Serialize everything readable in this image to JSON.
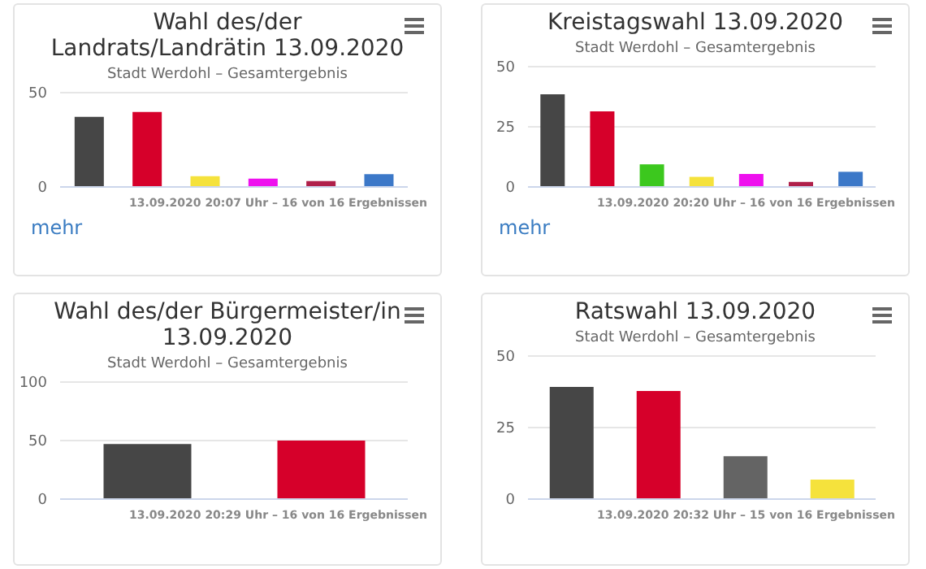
{
  "chart_data": [
    {
      "type": "bar",
      "title": "Wahl des/der Landrats/Landrätin 13.09.2020",
      "subtitle": "Stadt Werdohl – Gesamtergebnis",
      "categories": [
        null,
        null,
        null,
        null,
        null,
        null
      ],
      "values": [
        37.2,
        39.8,
        5.7,
        4.4,
        3.1,
        6.8
      ],
      "colors": [
        "#464646",
        "#d6002a",
        "#f5e23c",
        "#ee10ee",
        "#b0204a",
        "#3c78c8"
      ],
      "ylim": [
        0,
        50
      ],
      "yticks": [
        0,
        50
      ],
      "grid": "y",
      "tick_labels": "y",
      "annotations": [
        "13.09.2020 20:07 Uhr – 16 von 16 Ergebnissen",
        "mehr"
      ]
    },
    {
      "type": "bar",
      "title": "Kreistagswahl 13.09.2020",
      "subtitle": "Stadt Werdohl – Gesamtergebnis",
      "categories": [
        null,
        null,
        null,
        null,
        null,
        null,
        null
      ],
      "values": [
        38.5,
        31.4,
        9.4,
        4.2,
        5.4,
        2.1,
        6.3
      ],
      "colors": [
        "#464646",
        "#d6002a",
        "#3cc81e",
        "#f5e23c",
        "#ee10ee",
        "#b0204a",
        "#3c78c8"
      ],
      "ylim": [
        0,
        50
      ],
      "yticks": [
        0,
        25,
        50
      ],
      "grid": "y",
      "tick_labels": "y",
      "annotations": [
        "13.09.2020 20:20 Uhr – 16 von 16 Ergebnissen",
        "mehr"
      ]
    },
    {
      "type": "bar",
      "title": "Wahl des/der Bürgermeister/in 13.09.2020",
      "subtitle": "Stadt Werdohl – Gesamtergebnis",
      "categories": [
        null,
        null
      ],
      "values": [
        47,
        50
      ],
      "colors": [
        "#464646",
        "#d6002a"
      ],
      "ylim": [
        0,
        100
      ],
      "yticks": [
        0,
        50,
        100
      ],
      "grid": "y",
      "tick_labels": "y",
      "annotations": [
        "13.09.2020 20:29 Uhr – 16 von 16 Ergebnissen"
      ]
    },
    {
      "type": "bar",
      "title": "Ratswahl 13.09.2020",
      "subtitle": "Stadt Werdohl – Gesamtergebnis",
      "categories": [
        null,
        null,
        null,
        null
      ],
      "values": [
        39.2,
        37.8,
        15.0,
        6.8
      ],
      "colors": [
        "#464646",
        "#d6002a",
        "#646464",
        "#f5e23c"
      ],
      "ylim": [
        0,
        50
      ],
      "yticks": [
        0,
        25,
        50
      ],
      "grid": "y",
      "tick_labels": "y",
      "annotations": [
        "13.09.2020 20:32 Uhr – 15 von 16 Ergebnissen"
      ]
    }
  ]
}
